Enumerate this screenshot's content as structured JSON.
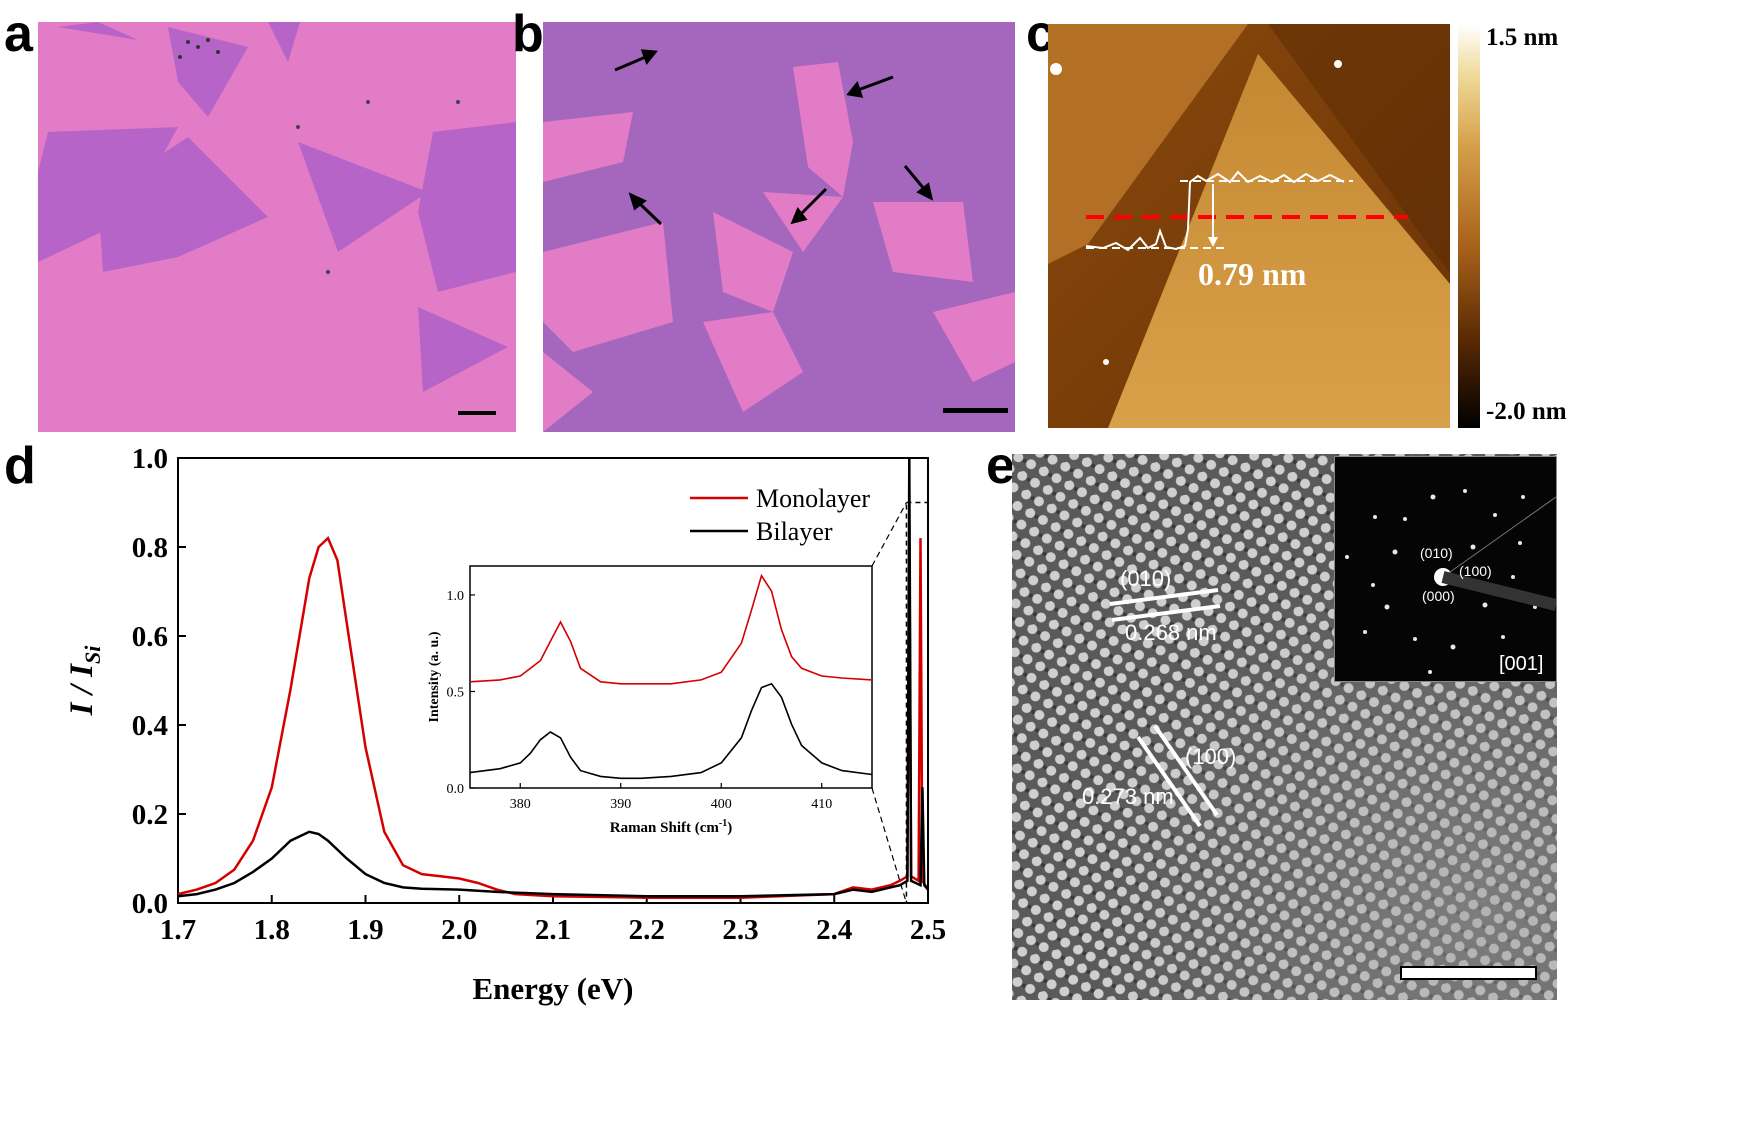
{
  "panels": {
    "a": {
      "label": "a"
    },
    "b": {
      "label": "b"
    },
    "c": {
      "label": "c",
      "step_height": "0.79 nm",
      "colorbar_max": "1.5 nm",
      "colorbar_min": "-2.0 nm"
    },
    "d": {
      "label": "d"
    },
    "e": {
      "label": "e",
      "plane_1": "(010)",
      "d_1": "0.268 nm",
      "plane_2": "(100)",
      "d_2": "0.273 nm",
      "saed_spot_010": "(010)",
      "saed_spot_100": "(100)",
      "saed_spot_000": "(000)",
      "zone_axis": "[001]"
    }
  },
  "colors": {
    "monolayer": "#d40000",
    "bilayer": "#000000",
    "optical_bg": "#e37cc6",
    "flake": "#b764c8"
  },
  "chart_data": [
    {
      "type": "line",
      "panel": "d",
      "xlabel": "Energy (eV)",
      "ylabel_main": "I / I",
      "ylabel_sub": "Si",
      "xlim": [
        1.7,
        2.5
      ],
      "ylim": [
        0.0,
        1.0
      ],
      "xticks": [
        "1.7",
        "1.8",
        "1.9",
        "2.0",
        "2.1",
        "2.2",
        "2.3",
        "2.4",
        "2.5"
      ],
      "yticks": [
        "0.0",
        "0.2",
        "0.4",
        "0.6",
        "0.8",
        "1.0"
      ],
      "legend": "top-right",
      "series": [
        {
          "name": "Monolayer",
          "x": [
            1.7,
            1.72,
            1.74,
            1.76,
            1.78,
            1.8,
            1.82,
            1.84,
            1.85,
            1.86,
            1.87,
            1.88,
            1.9,
            1.92,
            1.94,
            1.96,
            1.98,
            2.0,
            2.02,
            2.04,
            2.06,
            2.1,
            2.2,
            2.3,
            2.4,
            2.42,
            2.44,
            2.46,
            2.47,
            2.478,
            2.48,
            2.482,
            2.49,
            2.492,
            2.494,
            2.5
          ],
          "y": [
            0.02,
            0.03,
            0.045,
            0.075,
            0.14,
            0.26,
            0.48,
            0.73,
            0.8,
            0.82,
            0.77,
            0.63,
            0.35,
            0.16,
            0.085,
            0.065,
            0.06,
            0.055,
            0.045,
            0.03,
            0.02,
            0.015,
            0.012,
            0.012,
            0.02,
            0.035,
            0.03,
            0.04,
            0.05,
            0.06,
            0.85,
            0.06,
            0.05,
            0.82,
            0.05,
            0.03
          ]
        },
        {
          "name": "Bilayer",
          "x": [
            1.7,
            1.72,
            1.74,
            1.76,
            1.78,
            1.8,
            1.82,
            1.84,
            1.85,
            1.86,
            1.88,
            1.9,
            1.92,
            1.94,
            1.96,
            2.0,
            2.04,
            2.1,
            2.2,
            2.3,
            2.4,
            2.42,
            2.44,
            2.46,
            2.47,
            2.478,
            2.48,
            2.482,
            2.492,
            2.494,
            2.496,
            2.5
          ],
          "y": [
            0.015,
            0.02,
            0.03,
            0.045,
            0.07,
            0.1,
            0.14,
            0.16,
            0.155,
            0.14,
            0.1,
            0.065,
            0.045,
            0.035,
            0.032,
            0.03,
            0.025,
            0.02,
            0.015,
            0.015,
            0.02,
            0.03,
            0.025,
            0.035,
            0.04,
            0.05,
            1.0,
            0.05,
            0.04,
            0.26,
            0.04,
            0.03
          ]
        }
      ]
    },
    {
      "type": "line",
      "panel": "d-inset",
      "xlabel": "Raman Shift (cm",
      "xlabel_sup": "-1",
      "xlabel_end": ")",
      "ylabel": "Intensity (a. u.)",
      "xlim": [
        375,
        415
      ],
      "ylim": [
        0.0,
        1.15
      ],
      "xticks": [
        "380",
        "390",
        "400",
        "410"
      ],
      "yticks": [
        "0.0",
        "0.5",
        "1.0"
      ],
      "series": [
        {
          "name": "Monolayer",
          "x": [
            375,
            378,
            380,
            382,
            383,
            384,
            385,
            386,
            388,
            390,
            392,
            395,
            398,
            400,
            402,
            403,
            404,
            405,
            406,
            407,
            408,
            410,
            412,
            415
          ],
          "y": [
            0.55,
            0.56,
            0.58,
            0.66,
            0.76,
            0.86,
            0.76,
            0.62,
            0.55,
            0.54,
            0.54,
            0.54,
            0.56,
            0.6,
            0.75,
            0.92,
            1.1,
            1.02,
            0.82,
            0.68,
            0.62,
            0.58,
            0.57,
            0.56
          ]
        },
        {
          "name": "Bilayer",
          "x": [
            375,
            378,
            380,
            381,
            382,
            383,
            384,
            385,
            386,
            388,
            390,
            392,
            395,
            398,
            400,
            402,
            403,
            404,
            405,
            406,
            407,
            408,
            410,
            412,
            415
          ],
          "y": [
            0.08,
            0.1,
            0.13,
            0.18,
            0.25,
            0.29,
            0.26,
            0.16,
            0.09,
            0.06,
            0.05,
            0.05,
            0.06,
            0.08,
            0.13,
            0.26,
            0.4,
            0.52,
            0.54,
            0.47,
            0.33,
            0.22,
            0.13,
            0.09,
            0.07
          ]
        }
      ]
    }
  ]
}
